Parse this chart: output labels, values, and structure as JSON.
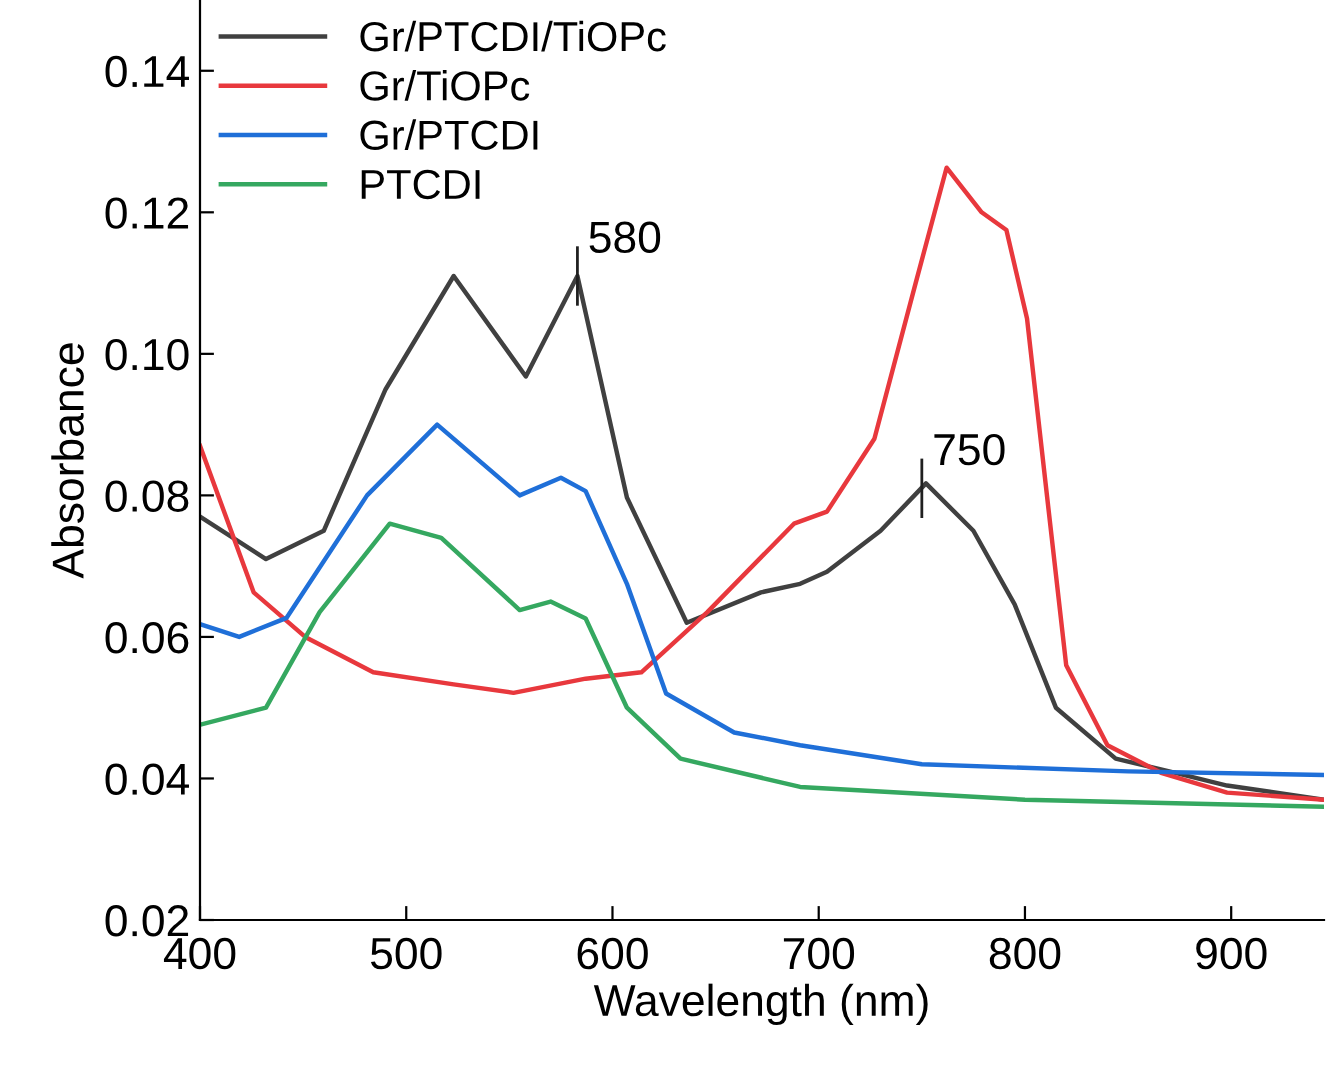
{
  "chart_data": {
    "type": "line",
    "xlabel": "Wavelength (nm)",
    "ylabel": "Absorbance",
    "xlim": [
      400,
      945
    ],
    "ylim": [
      0.02,
      0.15
    ],
    "xticks": [
      400,
      500,
      600,
      700,
      800,
      900
    ],
    "yticks": [
      {
        "value": 0.02,
        "label": "0.02"
      },
      {
        "value": 0.04,
        "label": "0.04"
      },
      {
        "value": 0.06,
        "label": "0.06"
      },
      {
        "value": 0.08,
        "label": "0.08"
      },
      {
        "value": 0.1,
        "label": "0.10"
      },
      {
        "value": 0.12,
        "label": "0.12"
      },
      {
        "value": 0.14,
        "label": "0.14"
      }
    ],
    "grid": false,
    "legend": "top left",
    "marker": "none",
    "line_style": "solid",
    "annotations": [
      {
        "text": "580",
        "x": 583,
        "y": 0.111
      },
      {
        "text": "750",
        "x": 750,
        "y": 0.081
      }
    ],
    "series": [
      {
        "name": "Gr/PTCDI/TiOPc",
        "color": "#404040",
        "x": [
          400,
          432,
          460,
          490,
          523,
          558,
          583,
          607,
          636,
          672,
          691,
          704,
          730,
          752,
          775,
          795,
          815,
          844,
          870,
          898,
          945
        ],
        "values": [
          0.077,
          0.071,
          0.075,
          0.095,
          0.111,
          0.0968,
          0.111,
          0.0797,
          0.062,
          0.0663,
          0.0675,
          0.0692,
          0.075,
          0.0817,
          0.075,
          0.0646,
          0.05,
          0.0428,
          0.041,
          0.039,
          0.037
        ]
      },
      {
        "name": "Gr/TiOPc",
        "color": "#e8383d",
        "x": [
          400,
          426,
          451,
          484,
          523,
          552,
          587,
          614,
          646,
          688,
          704,
          727,
          747,
          762,
          779,
          791,
          801,
          810,
          820,
          840,
          866,
          898,
          945
        ],
        "values": [
          0.087,
          0.0663,
          0.06,
          0.055,
          0.0533,
          0.0521,
          0.0541,
          0.055,
          0.0635,
          0.076,
          0.0777,
          0.088,
          0.11,
          0.1263,
          0.12,
          0.1175,
          0.105,
          0.0817,
          0.056,
          0.0447,
          0.0408,
          0.038,
          0.037
        ]
      },
      {
        "name": "Gr/PTCDI",
        "color": "#1f6fd8",
        "x": [
          400,
          419,
          442,
          481,
          515,
          555,
          575,
          587,
          607,
          626,
          659,
          691,
          750,
          850,
          945
        ],
        "values": [
          0.0618,
          0.06,
          0.0627,
          0.08,
          0.09,
          0.08,
          0.0825,
          0.0806,
          0.0675,
          0.052,
          0.0465,
          0.0447,
          0.042,
          0.041,
          0.0405
        ]
      },
      {
        "name": "PTCDI",
        "color": "#35a860",
        "x": [
          400,
          432,
          458,
          492,
          517,
          555,
          570,
          587,
          607,
          633,
          691,
          800,
          945
        ],
        "values": [
          0.0476,
          0.05,
          0.0635,
          0.076,
          0.074,
          0.0638,
          0.065,
          0.0626,
          0.05,
          0.0428,
          0.0388,
          0.037,
          0.036
        ]
      }
    ]
  }
}
